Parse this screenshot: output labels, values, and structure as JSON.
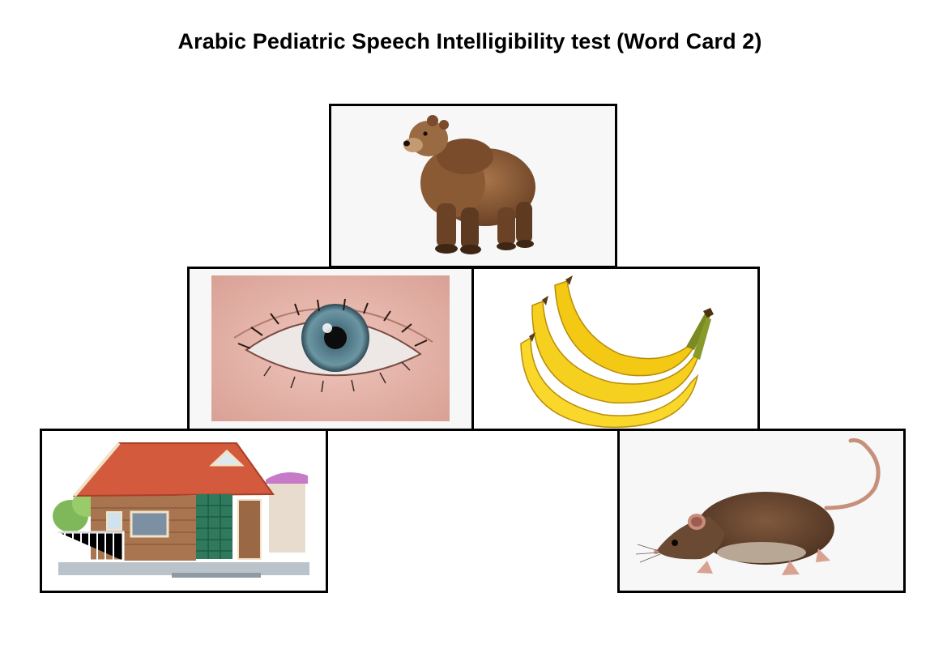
{
  "title": "Arabic Pediatric Speech Intelligibility test (Word Card 2)",
  "cards": [
    {
      "id": "bear",
      "icon": "bear-icon"
    },
    {
      "id": "eye",
      "icon": "eye-icon"
    },
    {
      "id": "banana",
      "icon": "banana-icon"
    },
    {
      "id": "house",
      "icon": "house-icon"
    },
    {
      "id": "rat",
      "icon": "rat-icon"
    }
  ],
  "colors": {
    "card_border": "#000000",
    "card_background": "#f7f7f7",
    "bear_fur": "#8a5a34",
    "eye_iris": "#5e7f8c",
    "banana": "#f6cf1b",
    "house_roof": "#d35a3c",
    "house_wall": "#a87550",
    "rat_fur": "#6b4a34"
  }
}
